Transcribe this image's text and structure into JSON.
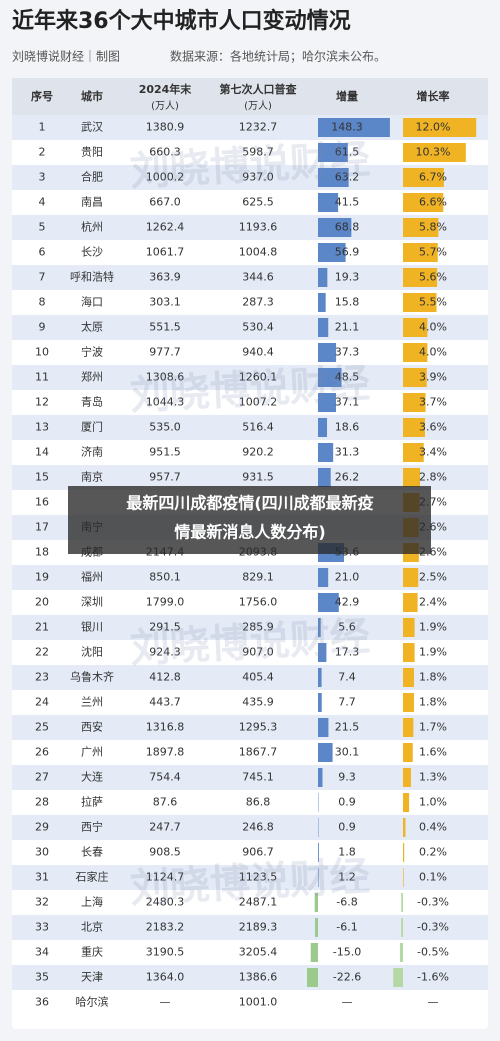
{
  "header": {
    "title": "近年来36个大中城市人口变动情况",
    "author": "刘晓博说财经｜制图",
    "source": "数据来源：各地统计局；哈尔滨未公布。"
  },
  "table": {
    "columns": [
      "序号",
      "城市",
      "2024年末",
      "第七次人口普查",
      "增量",
      "增长率"
    ],
    "units": [
      "(万人)",
      "(万人)"
    ],
    "rows": [
      [
        "1",
        "武汉",
        "1380.9",
        "1232.7",
        "148.3",
        "12.0%"
      ],
      [
        "2",
        "贵阳",
        "660.3",
        "598.7",
        "61.5",
        "10.3%"
      ],
      [
        "3",
        "合肥",
        "1000.2",
        "937.0",
        "63.2",
        "6.7%"
      ],
      [
        "4",
        "南昌",
        "667.0",
        "625.5",
        "41.5",
        "6.6%"
      ],
      [
        "5",
        "杭州",
        "1262.4",
        "1193.6",
        "68.8",
        "5.8%"
      ],
      [
        "6",
        "长沙",
        "1061.7",
        "1004.8",
        "56.9",
        "5.7%"
      ],
      [
        "7",
        "呼和浩特",
        "363.9",
        "344.6",
        "19.3",
        "5.6%"
      ],
      [
        "8",
        "海口",
        "303.1",
        "287.3",
        "15.8",
        "5.5%"
      ],
      [
        "9",
        "太原",
        "551.5",
        "530.4",
        "21.1",
        "4.0%"
      ],
      [
        "10",
        "宁波",
        "977.7",
        "940.4",
        "37.3",
        "4.0%"
      ],
      [
        "11",
        "郑州",
        "1308.6",
        "1260.1",
        "48.5",
        "3.9%"
      ],
      [
        "12",
        "青岛",
        "1044.3",
        "1007.2",
        "37.1",
        "3.7%"
      ],
      [
        "13",
        "厦门",
        "535.0",
        "516.4",
        "18.6",
        "3.6%"
      ],
      [
        "14",
        "济南",
        "951.5",
        "920.2",
        "31.3",
        "3.4%"
      ],
      [
        "15",
        "南京",
        "957.7",
        "931.5",
        "26.2",
        "2.8%"
      ],
      [
        "16",
        null,
        null,
        null,
        null,
        "2.7%"
      ],
      [
        "17",
        "南宁",
        null,
        null,
        null,
        "2.6%"
      ],
      [
        "18",
        "成都",
        "2147.4",
        "2093.8",
        "53.6",
        "2.6%"
      ],
      [
        "19",
        "福州",
        "850.1",
        "829.1",
        "21.0",
        "2.5%"
      ],
      [
        "20",
        "深圳",
        "1799.0",
        "1756.0",
        "42.9",
        "2.4%"
      ],
      [
        "21",
        "银川",
        "291.5",
        "285.9",
        "5.6",
        "1.9%"
      ],
      [
        "22",
        "沈阳",
        "924.3",
        "907.0",
        "17.3",
        "1.9%"
      ],
      [
        "23",
        "乌鲁木齐",
        "412.8",
        "405.4",
        "7.4",
        "1.8%"
      ],
      [
        "24",
        "兰州",
        "443.7",
        "435.9",
        "7.7",
        "1.8%"
      ],
      [
        "25",
        "西安",
        "1316.8",
        "1295.3",
        "21.5",
        "1.7%"
      ],
      [
        "26",
        "广州",
        "1897.8",
        "1867.7",
        "30.1",
        "1.6%"
      ],
      [
        "27",
        "大连",
        "754.4",
        "745.1",
        "9.3",
        "1.3%"
      ],
      [
        "28",
        "拉萨",
        "87.6",
        "86.8",
        "0.9",
        "1.0%"
      ],
      [
        "29",
        "西宁",
        "247.7",
        "246.8",
        "0.9",
        "0.4%"
      ],
      [
        "30",
        "长春",
        "908.5",
        "906.7",
        "1.8",
        "0.2%"
      ],
      [
        "31",
        "石家庄",
        "1124.7",
        "1123.5",
        "1.2",
        "0.1%"
      ],
      [
        "32",
        "上海",
        "2480.3",
        "2487.1",
        "-6.8",
        "-0.3%"
      ],
      [
        "33",
        "北京",
        "2183.2",
        "2189.3",
        "-6.1",
        "-0.3%"
      ],
      [
        "34",
        "重庆",
        "3190.5",
        "3205.4",
        "-15.0",
        "-0.5%"
      ],
      [
        "35",
        "天津",
        "1364.0",
        "1386.6",
        "-22.6",
        "-1.6%"
      ],
      [
        "36",
        "哈尔滨",
        "—",
        "1001.0",
        "—",
        "—"
      ]
    ]
  },
  "watermark": "刘晓博说财经",
  "overlay": {
    "line1": "最新四川成都疫情(四川成都最新疫",
    "line2": "情最新消息人数分布)"
  }
}
